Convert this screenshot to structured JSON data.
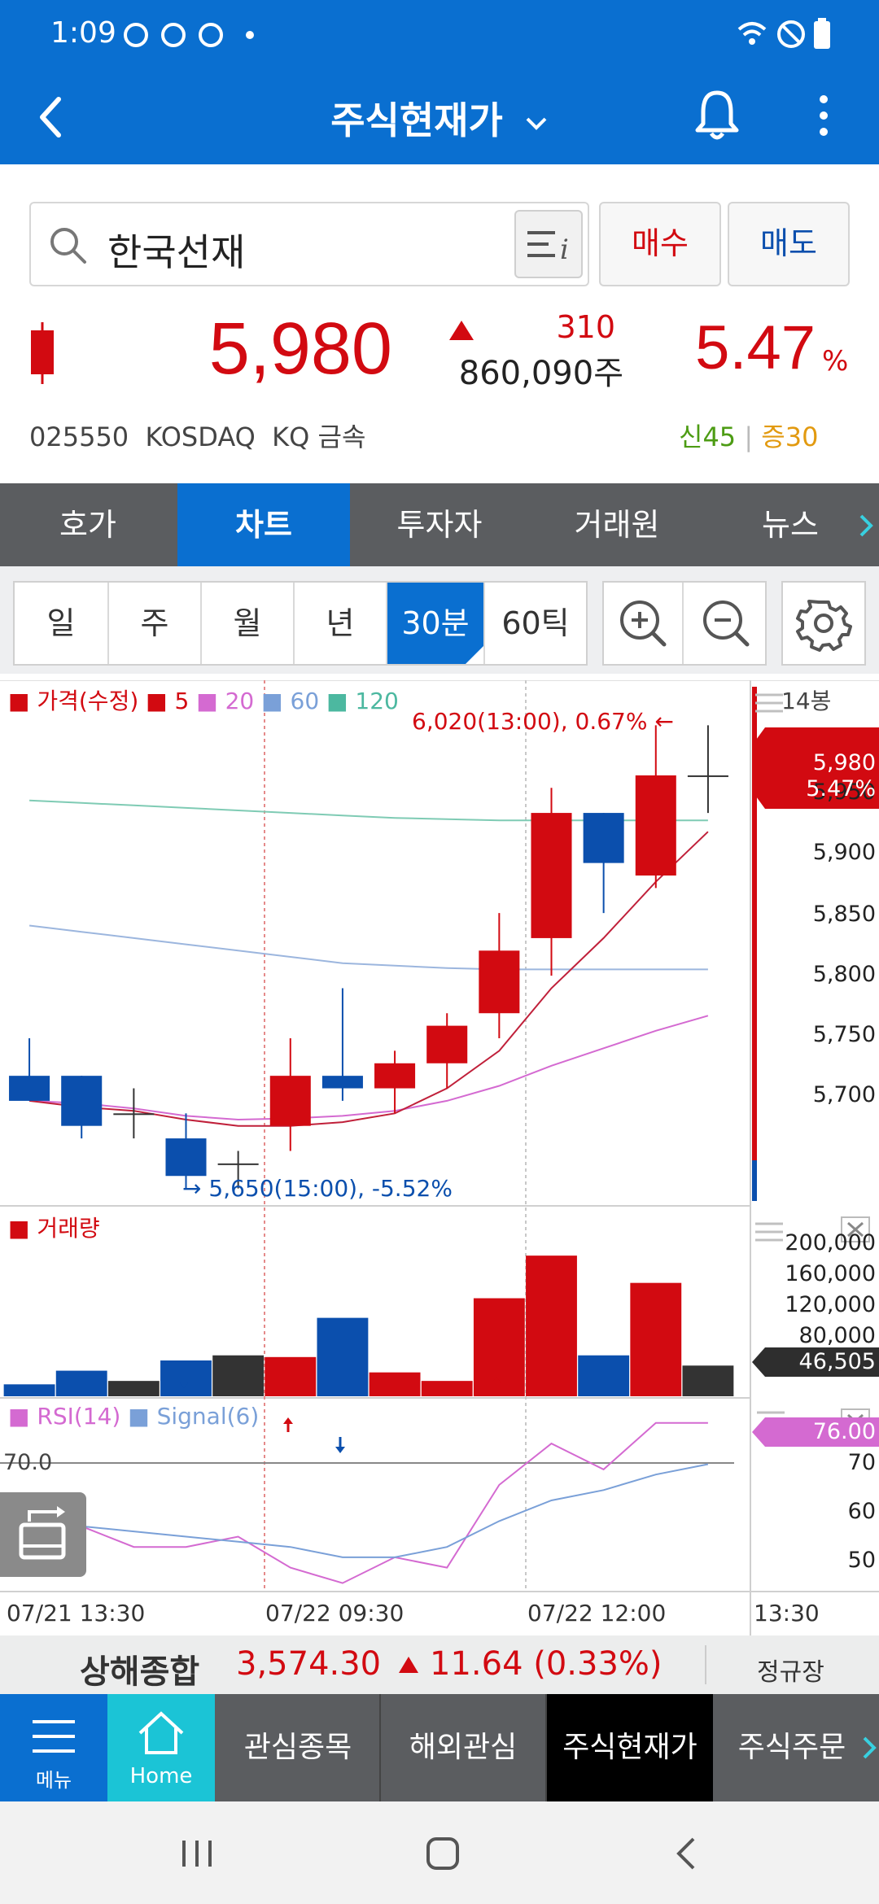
{
  "status_bar": {
    "time": "1:09"
  },
  "header": {
    "title": "주식현재가"
  },
  "search": {
    "value": "한국선재"
  },
  "actions": {
    "buy_label": "매수",
    "sell_label": "매도"
  },
  "quote": {
    "price": "5,980",
    "change": "310",
    "volume": "860,090주",
    "change_pct": "5.47",
    "pct_sign": "%",
    "code": "025550",
    "market": "KOSDAQ",
    "sector": "KQ 금속",
    "tag_new": "신45",
    "tag_sep": "|",
    "tag_margin": "증30"
  },
  "tabs": [
    "호가",
    "차트",
    "투자자",
    "거래원",
    "뉴스"
  ],
  "periods": [
    "일",
    "주",
    "월",
    "년",
    "30분",
    "60틱"
  ],
  "chart_data": {
    "type": "candlestick",
    "legend": {
      "label": "가격(수정)",
      "ma": [
        "5",
        "20",
        "60",
        "120"
      ]
    },
    "count_label": "14봉",
    "y_ticks": [
      "5,950",
      "5,900",
      "5,850",
      "5,800",
      "5,750",
      "5,700"
    ],
    "ylim": [
      5640,
      6030
    ],
    "candles": [
      {
        "open": 5740,
        "high": 5770,
        "low": 5720,
        "close": 5720
      },
      {
        "open": 5740,
        "high": 5740,
        "low": 5690,
        "close": 5700
      },
      {
        "open": 5710,
        "high": 5730,
        "low": 5690,
        "close": 5710
      },
      {
        "open": 5690,
        "high": 5710,
        "low": 5650,
        "close": 5660
      },
      {
        "open": 5670,
        "high": 5680,
        "low": 5650,
        "close": 5670
      },
      {
        "open": 5700,
        "high": 5770,
        "low": 5680,
        "close": 5740
      },
      {
        "open": 5740,
        "high": 5810,
        "low": 5720,
        "close": 5730
      },
      {
        "open": 5730,
        "high": 5760,
        "low": 5710,
        "close": 5750
      },
      {
        "open": 5750,
        "high": 5790,
        "low": 5730,
        "close": 5780
      },
      {
        "open": 5790,
        "high": 5870,
        "low": 5770,
        "close": 5840
      },
      {
        "open": 5850,
        "high": 5970,
        "low": 5820,
        "close": 5950
      },
      {
        "open": 5950,
        "high": 5950,
        "low": 5870,
        "close": 5910
      },
      {
        "open": 5900,
        "high": 6020,
        "low": 5890,
        "close": 5980
      },
      {
        "open": 5980,
        "high": 6020,
        "low": 5950,
        "close": 5980
      }
    ],
    "ma5": [
      5720,
      5715,
      5712,
      5705,
      5700,
      5700,
      5703,
      5710,
      5730,
      5760,
      5810,
      5850,
      5895,
      5935
    ],
    "ma20": [
      5720,
      5718,
      5714,
      5708,
      5705,
      5706,
      5708,
      5712,
      5720,
      5732,
      5748,
      5762,
      5776,
      5788
    ],
    "ma60": [
      5860,
      5855,
      5850,
      5845,
      5840,
      5835,
      5830,
      5828,
      5826,
      5825,
      5825,
      5825,
      5825,
      5825
    ],
    "ma120": [
      5960,
      5958,
      5956,
      5954,
      5952,
      5950,
      5948,
      5946,
      5945,
      5944,
      5944,
      5944,
      5944,
      5944
    ],
    "high_annotation": "6,020(13:00), 0.67%",
    "low_annotation": "5,650(15:00), -5.52%",
    "current_price": "5,980",
    "current_pct": "5.47%",
    "volume": {
      "label": "거래량",
      "y_ticks": [
        "200,000",
        "160,000",
        "120,000",
        "80,000"
      ],
      "ylim": [
        0,
        210000
      ],
      "values": [
        14000,
        30000,
        18000,
        42000,
        48000,
        46000,
        92000,
        28000,
        18000,
        115000,
        165000,
        48000,
        133000,
        36000
      ],
      "current": "46,505"
    },
    "rsi": {
      "label": "RSI(14)",
      "signal_label": "Signal(6)",
      "level_label": "70.0",
      "y_ticks": [
        "70",
        "60",
        "50"
      ],
      "ylim": [
        44,
        78
      ],
      "rsi": [
        62,
        56,
        52,
        52,
        54,
        48,
        45,
        50,
        48,
        64,
        72,
        67,
        76,
        76
      ],
      "signal": [
        55,
        56,
        55,
        54,
        53,
        52,
        50,
        50,
        52,
        57,
        61,
        63,
        66,
        68
      ],
      "current": "76.00"
    },
    "x_labels": [
      "07/21 13:30",
      "07/22 09:30",
      "07/22 12:00",
      "13:30"
    ]
  },
  "index": {
    "name": "상해종합",
    "value": "3,574.30",
    "change": "11.64 (0.33%)",
    "session": "정규장"
  },
  "bottom_nav": {
    "menu": "메뉴",
    "home": "Home",
    "items": [
      "관심종목",
      "해외관심",
      "주식현재가",
      "주식주문"
    ]
  }
}
